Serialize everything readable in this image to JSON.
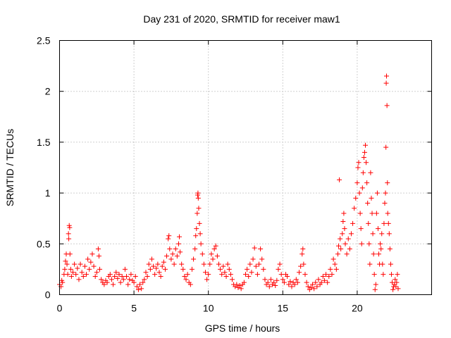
{
  "chart_data": {
    "type": "scatter",
    "title": "Day 231 of 2020, SRMTID for receiver maw1",
    "xlabel": "GPS time / hours",
    "ylabel": "SRMTID / TECUs",
    "xlim": [
      0,
      25
    ],
    "ylim": [
      0,
      2.5
    ],
    "x_ticks": [
      0,
      5,
      10,
      15,
      20
    ],
    "x_tick_labels": [
      "0",
      "5",
      "10",
      "15",
      "20"
    ],
    "y_ticks": [
      0,
      0.5,
      1,
      1.5,
      2,
      2.5
    ],
    "y_tick_labels": [
      "0",
      "0.5",
      "1",
      "1.5",
      "2",
      "2.5"
    ],
    "grid": true,
    "marker": "+",
    "series": [
      {
        "name": "SRMTID",
        "color": "#ff0000",
        "points": [
          [
            0.0,
            0.1
          ],
          [
            0.1,
            0.08
          ],
          [
            0.15,
            0.14
          ],
          [
            0.2,
            0.12
          ],
          [
            0.3,
            0.2
          ],
          [
            0.35,
            0.25
          ],
          [
            0.4,
            0.33
          ],
          [
            0.45,
            0.4
          ],
          [
            0.5,
            0.3
          ],
          [
            0.55,
            0.2
          ],
          [
            0.6,
            0.6
          ],
          [
            0.62,
            0.55
          ],
          [
            0.65,
            0.68
          ],
          [
            0.68,
            0.66
          ],
          [
            0.7,
            0.4
          ],
          [
            0.75,
            0.25
          ],
          [
            0.8,
            0.18
          ],
          [
            0.9,
            0.22
          ],
          [
            1.0,
            0.3
          ],
          [
            1.1,
            0.2
          ],
          [
            1.2,
            0.26
          ],
          [
            1.3,
            0.15
          ],
          [
            1.4,
            0.3
          ],
          [
            1.5,
            0.22
          ],
          [
            1.6,
            0.18
          ],
          [
            1.7,
            0.28
          ],
          [
            1.8,
            0.2
          ],
          [
            1.9,
            0.35
          ],
          [
            2.0,
            0.25
          ],
          [
            2.1,
            0.32
          ],
          [
            2.2,
            0.4
          ],
          [
            2.3,
            0.28
          ],
          [
            2.4,
            0.18
          ],
          [
            2.5,
            0.22
          ],
          [
            2.6,
            0.45
          ],
          [
            2.65,
            0.38
          ],
          [
            2.7,
            0.25
          ],
          [
            2.8,
            0.15
          ],
          [
            2.9,
            0.12
          ],
          [
            3.0,
            0.1
          ],
          [
            3.1,
            0.14
          ],
          [
            3.2,
            0.12
          ],
          [
            3.3,
            0.18
          ],
          [
            3.4,
            0.2
          ],
          [
            3.5,
            0.15
          ],
          [
            3.6,
            0.1
          ],
          [
            3.7,
            0.18
          ],
          [
            3.8,
            0.22
          ],
          [
            3.9,
            0.16
          ],
          [
            4.0,
            0.2
          ],
          [
            4.1,
            0.12
          ],
          [
            4.2,
            0.18
          ],
          [
            4.3,
            0.15
          ],
          [
            4.4,
            0.25
          ],
          [
            4.5,
            0.18
          ],
          [
            4.6,
            0.1
          ],
          [
            4.7,
            0.15
          ],
          [
            4.8,
            0.2
          ],
          [
            4.9,
            0.14
          ],
          [
            5.0,
            0.12
          ],
          [
            5.1,
            0.18
          ],
          [
            5.2,
            0.08
          ],
          [
            5.3,
            0.05
          ],
          [
            5.4,
            0.1
          ],
          [
            5.5,
            0.06
          ],
          [
            5.6,
            0.12
          ],
          [
            5.7,
            0.15
          ],
          [
            5.8,
            0.22
          ],
          [
            5.9,
            0.18
          ],
          [
            6.0,
            0.3
          ],
          [
            6.1,
            0.25
          ],
          [
            6.2,
            0.35
          ],
          [
            6.3,
            0.28
          ],
          [
            6.4,
            0.2
          ],
          [
            6.5,
            0.26
          ],
          [
            6.6,
            0.3
          ],
          [
            6.7,
            0.22
          ],
          [
            6.8,
            0.18
          ],
          [
            6.9,
            0.28
          ],
          [
            7.0,
            0.32
          ],
          [
            7.1,
            0.25
          ],
          [
            7.2,
            0.38
          ],
          [
            7.3,
            0.55
          ],
          [
            7.35,
            0.58
          ],
          [
            7.4,
            0.45
          ],
          [
            7.5,
            0.35
          ],
          [
            7.6,
            0.4
          ],
          [
            7.7,
            0.3
          ],
          [
            7.8,
            0.45
          ],
          [
            7.9,
            0.38
          ],
          [
            8.0,
            0.5
          ],
          [
            8.05,
            0.57
          ],
          [
            8.1,
            0.42
          ],
          [
            8.2,
            0.3
          ],
          [
            8.3,
            0.25
          ],
          [
            8.4,
            0.18
          ],
          [
            8.5,
            0.15
          ],
          [
            8.6,
            0.2
          ],
          [
            8.7,
            0.12
          ],
          [
            8.8,
            0.1
          ],
          [
            8.9,
            0.25
          ],
          [
            9.0,
            0.35
          ],
          [
            9.1,
            0.45
          ],
          [
            9.15,
            0.58
          ],
          [
            9.2,
            0.65
          ],
          [
            9.25,
            0.8
          ],
          [
            9.28,
            0.98
          ],
          [
            9.3,
            1.0
          ],
          [
            9.32,
            0.95
          ],
          [
            9.35,
            0.85
          ],
          [
            9.4,
            0.7
          ],
          [
            9.45,
            0.6
          ],
          [
            9.5,
            0.5
          ],
          [
            9.6,
            0.4
          ],
          [
            9.7,
            0.3
          ],
          [
            9.8,
            0.22
          ],
          [
            9.9,
            0.15
          ],
          [
            10.0,
            0.2
          ],
          [
            10.1,
            0.3
          ],
          [
            10.2,
            0.4
          ],
          [
            10.3,
            0.35
          ],
          [
            10.4,
            0.45
          ],
          [
            10.5,
            0.48
          ],
          [
            10.6,
            0.38
          ],
          [
            10.7,
            0.3
          ],
          [
            10.8,
            0.25
          ],
          [
            10.9,
            0.2
          ],
          [
            11.0,
            0.28
          ],
          [
            11.1,
            0.22
          ],
          [
            11.2,
            0.18
          ],
          [
            11.3,
            0.3
          ],
          [
            11.4,
            0.25
          ],
          [
            11.5,
            0.2
          ],
          [
            11.6,
            0.15
          ],
          [
            11.7,
            0.1
          ],
          [
            11.8,
            0.08
          ],
          [
            11.9,
            0.1
          ],
          [
            12.0,
            0.07
          ],
          [
            12.1,
            0.09
          ],
          [
            12.2,
            0.06
          ],
          [
            12.3,
            0.1
          ],
          [
            12.4,
            0.12
          ],
          [
            12.5,
            0.2
          ],
          [
            12.6,
            0.25
          ],
          [
            12.7,
            0.18
          ],
          [
            12.8,
            0.3
          ],
          [
            12.9,
            0.22
          ],
          [
            13.0,
            0.35
          ],
          [
            13.1,
            0.46
          ],
          [
            13.2,
            0.28
          ],
          [
            13.3,
            0.2
          ],
          [
            13.4,
            0.3
          ],
          [
            13.5,
            0.45
          ],
          [
            13.6,
            0.35
          ],
          [
            13.7,
            0.25
          ],
          [
            13.8,
            0.15
          ],
          [
            13.9,
            0.1
          ],
          [
            14.0,
            0.12
          ],
          [
            14.1,
            0.08
          ],
          [
            14.2,
            0.15
          ],
          [
            14.3,
            0.1
          ],
          [
            14.4,
            0.12
          ],
          [
            14.5,
            0.09
          ],
          [
            14.6,
            0.14
          ],
          [
            14.7,
            0.25
          ],
          [
            14.8,
            0.3
          ],
          [
            14.9,
            0.2
          ],
          [
            15.0,
            0.15
          ],
          [
            15.1,
            0.12
          ],
          [
            15.2,
            0.2
          ],
          [
            15.3,
            0.18
          ],
          [
            15.4,
            0.1
          ],
          [
            15.5,
            0.13
          ],
          [
            15.6,
            0.08
          ],
          [
            15.7,
            0.12
          ],
          [
            15.8,
            0.1
          ],
          [
            15.9,
            0.15
          ],
          [
            16.0,
            0.12
          ],
          [
            16.1,
            0.22
          ],
          [
            16.2,
            0.28
          ],
          [
            16.3,
            0.4
          ],
          [
            16.35,
            0.45
          ],
          [
            16.4,
            0.3
          ],
          [
            16.5,
            0.2
          ],
          [
            16.6,
            0.12
          ],
          [
            16.7,
            0.08
          ],
          [
            16.8,
            0.05
          ],
          [
            16.9,
            0.07
          ],
          [
            17.0,
            0.1
          ],
          [
            17.1,
            0.06
          ],
          [
            17.2,
            0.12
          ],
          [
            17.3,
            0.08
          ],
          [
            17.4,
            0.15
          ],
          [
            17.5,
            0.1
          ],
          [
            17.6,
            0.12
          ],
          [
            17.7,
            0.18
          ],
          [
            17.8,
            0.14
          ],
          [
            17.9,
            0.2
          ],
          [
            18.0,
            0.12
          ],
          [
            18.1,
            0.18
          ],
          [
            18.2,
            0.25
          ],
          [
            18.3,
            0.2
          ],
          [
            18.4,
            0.35
          ],
          [
            18.5,
            0.3
          ],
          [
            18.6,
            0.25
          ],
          [
            18.7,
            0.4
          ],
          [
            18.75,
            0.48
          ],
          [
            18.8,
            1.13
          ],
          [
            18.85,
            0.55
          ],
          [
            18.9,
            0.45
          ],
          [
            19.0,
            0.6
          ],
          [
            19.05,
            0.72
          ],
          [
            19.1,
            0.8
          ],
          [
            19.15,
            0.65
          ],
          [
            19.2,
            0.5
          ],
          [
            19.3,
            0.4
          ],
          [
            19.4,
            0.55
          ],
          [
            19.5,
            0.45
          ],
          [
            19.6,
            0.6
          ],
          [
            19.7,
            0.7
          ],
          [
            19.8,
            0.85
          ],
          [
            19.9,
            0.95
          ],
          [
            20.0,
            1.1
          ],
          [
            20.05,
            1.25
          ],
          [
            20.1,
            1.3
          ],
          [
            20.15,
            1.0
          ],
          [
            20.2,
            0.8
          ],
          [
            20.25,
            0.65
          ],
          [
            20.3,
            0.5
          ],
          [
            20.35,
            1.05
          ],
          [
            20.4,
            1.2
          ],
          [
            20.45,
            1.35
          ],
          [
            20.5,
            1.4
          ],
          [
            20.55,
            1.47
          ],
          [
            20.6,
            1.3
          ],
          [
            20.65,
            1.1
          ],
          [
            20.7,
            0.9
          ],
          [
            20.75,
            0.7
          ],
          [
            20.8,
            0.5
          ],
          [
            20.85,
            0.3
          ],
          [
            20.9,
            1.2
          ],
          [
            20.95,
            0.95
          ],
          [
            21.0,
            0.8
          ],
          [
            21.05,
            0.6
          ],
          [
            21.1,
            0.4
          ],
          [
            21.15,
            0.2
          ],
          [
            21.2,
            0.05
          ],
          [
            21.25,
            0.1
          ],
          [
            21.3,
            0.8
          ],
          [
            21.35,
            1.0
          ],
          [
            21.4,
            0.65
          ],
          [
            21.45,
            0.4
          ],
          [
            21.5,
            0.3
          ],
          [
            21.55,
            0.5
          ],
          [
            21.6,
            0.45
          ],
          [
            21.65,
            0.6
          ],
          [
            21.7,
            0.3
          ],
          [
            21.75,
            0.2
          ],
          [
            21.8,
            0.7
          ],
          [
            21.85,
            0.9
          ],
          [
            21.9,
            1.0
          ],
          [
            21.93,
            1.45
          ],
          [
            21.95,
            2.08
          ],
          [
            21.97,
            2.15
          ],
          [
            22.0,
            1.86
          ],
          [
            22.03,
            1.1
          ],
          [
            22.05,
            0.8
          ],
          [
            22.1,
            0.7
          ],
          [
            22.15,
            0.6
          ],
          [
            22.2,
            0.45
          ],
          [
            22.25,
            0.3
          ],
          [
            22.3,
            0.2
          ],
          [
            22.35,
            0.12
          ],
          [
            22.4,
            0.05
          ],
          [
            22.45,
            0.08
          ],
          [
            22.5,
            0.1
          ],
          [
            22.55,
            0.15
          ],
          [
            22.6,
            0.08
          ],
          [
            22.65,
            0.12
          ],
          [
            22.7,
            0.2
          ],
          [
            22.75,
            0.06
          ]
        ]
      }
    ]
  }
}
